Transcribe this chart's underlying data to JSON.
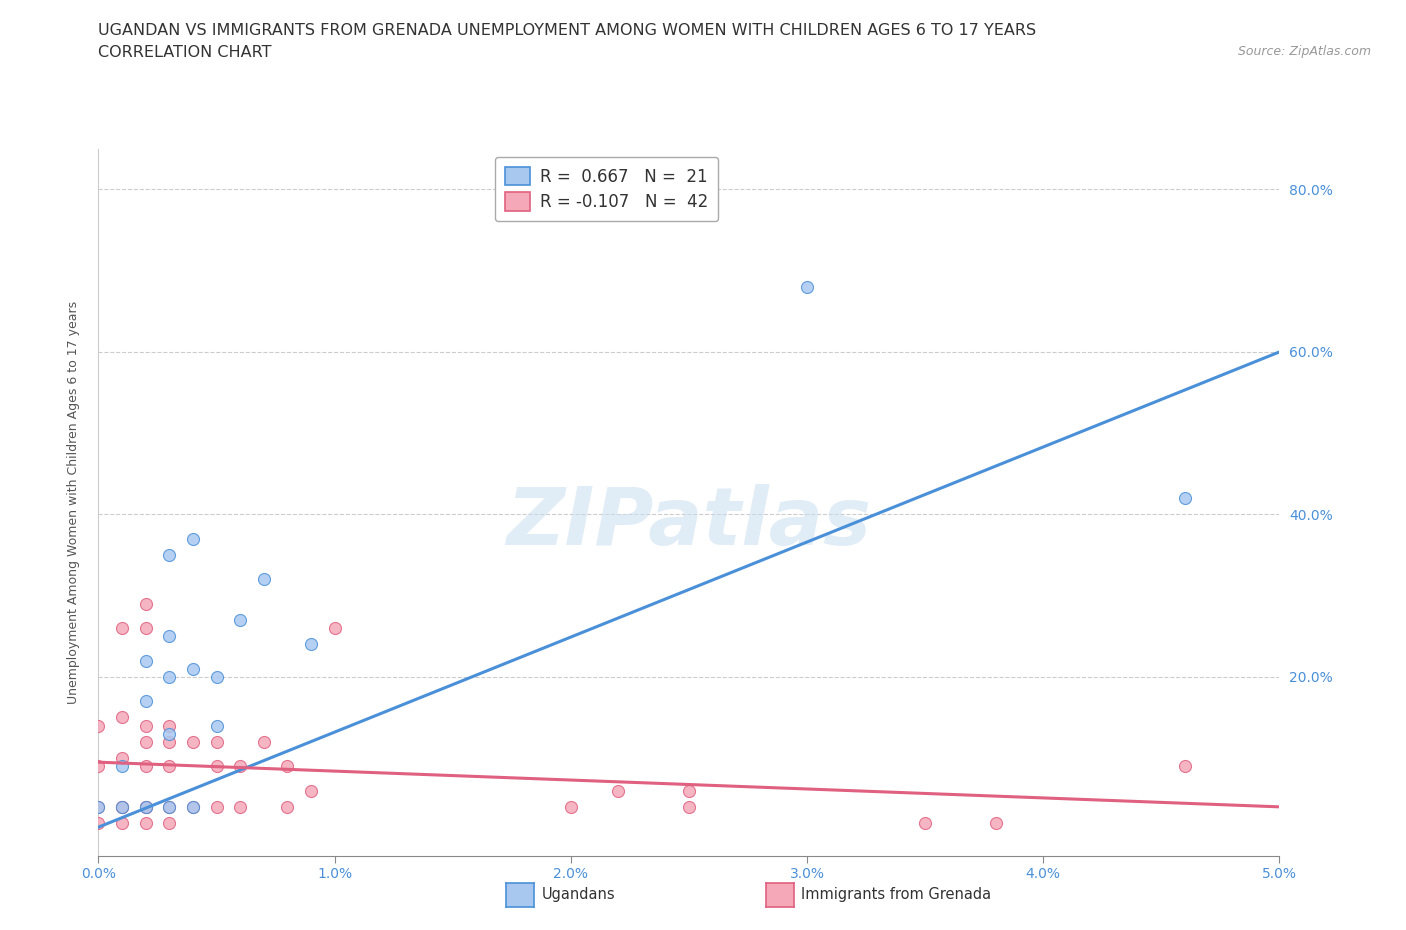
{
  "title_line1": "UGANDAN VS IMMIGRANTS FROM GRENADA UNEMPLOYMENT AMONG WOMEN WITH CHILDREN AGES 6 TO 17 YEARS",
  "title_line2": "CORRELATION CHART",
  "source_text": "Source: ZipAtlas.com",
  "ylabel": "Unemployment Among Women with Children Ages 6 to 17 years",
  "xlim": [
    0.0,
    0.05
  ],
  "ylim": [
    -0.02,
    0.85
  ],
  "xtick_labels": [
    "0.0%",
    "1.0%",
    "2.0%",
    "3.0%",
    "4.0%",
    "5.0%"
  ],
  "xtick_values": [
    0.0,
    0.01,
    0.02,
    0.03,
    0.04,
    0.05
  ],
  "ytick_labels": [
    "20.0%",
    "40.0%",
    "60.0%",
    "80.0%"
  ],
  "ytick_values": [
    0.2,
    0.4,
    0.6,
    0.8
  ],
  "watermark": "ZIPatlas",
  "legend_r1": "R =  0.667   N =  21",
  "legend_r2": "R = -0.107   N =  42",
  "ugandan_color": "#a8c8f0",
  "grenada_color": "#f4a8b8",
  "ugandan_line_color": "#4a90d9",
  "grenada_line_color": "#e06080",
  "ugandan_scatter_x": [
    0.0,
    0.001,
    0.001,
    0.002,
    0.002,
    0.002,
    0.003,
    0.003,
    0.003,
    0.003,
    0.003,
    0.004,
    0.004,
    0.004,
    0.005,
    0.005,
    0.006,
    0.007,
    0.009,
    0.03,
    0.046
  ],
  "ugandan_scatter_y": [
    0.04,
    0.04,
    0.09,
    0.04,
    0.17,
    0.22,
    0.04,
    0.13,
    0.2,
    0.25,
    0.35,
    0.04,
    0.21,
    0.37,
    0.14,
    0.2,
    0.27,
    0.32,
    0.24,
    0.68,
    0.42
  ],
  "grenada_scatter_x": [
    0.0,
    0.0,
    0.0,
    0.0,
    0.001,
    0.001,
    0.001,
    0.001,
    0.001,
    0.001,
    0.002,
    0.002,
    0.002,
    0.002,
    0.002,
    0.002,
    0.002,
    0.002,
    0.003,
    0.003,
    0.003,
    0.003,
    0.003,
    0.004,
    0.004,
    0.005,
    0.005,
    0.005,
    0.006,
    0.006,
    0.007,
    0.008,
    0.008,
    0.009,
    0.01,
    0.02,
    0.022,
    0.025,
    0.025,
    0.035,
    0.038,
    0.046
  ],
  "grenada_scatter_y": [
    0.02,
    0.04,
    0.09,
    0.14,
    0.02,
    0.04,
    0.04,
    0.1,
    0.15,
    0.26,
    0.02,
    0.04,
    0.04,
    0.09,
    0.12,
    0.14,
    0.26,
    0.29,
    0.02,
    0.04,
    0.09,
    0.12,
    0.14,
    0.04,
    0.12,
    0.04,
    0.09,
    0.12,
    0.04,
    0.09,
    0.12,
    0.04,
    0.09,
    0.06,
    0.26,
    0.04,
    0.06,
    0.04,
    0.06,
    0.02,
    0.02,
    0.09
  ],
  "ugandan_trendline_x": [
    0.0,
    0.05
  ],
  "ugandan_trendline_y": [
    0.015,
    0.6
  ],
  "grenada_trendline_x": [
    0.0,
    0.05
  ],
  "grenada_trendline_y": [
    0.095,
    0.04
  ],
  "background_color": "#ffffff",
  "grid_color": "#cccccc",
  "title_fontsize": 11.5,
  "subtitle_fontsize": 11.5,
  "axis_label_fontsize": 9,
  "tick_fontsize": 10,
  "legend_fontsize": 12
}
